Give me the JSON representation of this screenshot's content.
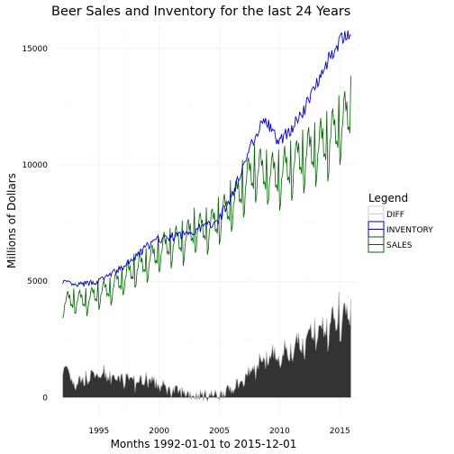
{
  "chart_data": {
    "type": "line",
    "title": "Beer Sales and Inventory for the last 24 Years",
    "xlabel": "Months 1992-01-01 to 2015-12-01",
    "ylabel": "Millions of Dollars",
    "x_start": "1992-01",
    "x_end": "2015-12",
    "xlim": [
      1991.5,
      2016.4
    ],
    "ylim": [
      -800,
      16000
    ],
    "x_ticks": [
      1995,
      2000,
      2005,
      2010,
      2015
    ],
    "y_ticks": [
      0,
      5000,
      10000,
      15000
    ],
    "x_tick_labels": [
      "1995",
      "2000",
      "2005",
      "2010",
      "2015"
    ],
    "y_tick_labels": [
      "0",
      "5000",
      "10000",
      "15000"
    ],
    "grid": true,
    "legend": {
      "title": "Legend",
      "position": "right"
    },
    "series": [
      {
        "name": "DIFF",
        "color": "#333333",
        "style": "area",
        "anchors": [
          [
            1992.0,
            1400
          ],
          [
            1993.0,
            600
          ],
          [
            1994.0,
            800
          ],
          [
            1995.0,
            900
          ],
          [
            1996.0,
            900
          ],
          [
            1997.0,
            800
          ],
          [
            1998.0,
            600
          ],
          [
            1999.0,
            800
          ],
          [
            2000.0,
            500
          ],
          [
            2001.0,
            300
          ],
          [
            2002.0,
            200
          ],
          [
            2003.0,
            100
          ],
          [
            2004.0,
            100
          ],
          [
            2005.0,
            100
          ],
          [
            2006.0,
            400
          ],
          [
            2007.0,
            700
          ],
          [
            2008.0,
            1300
          ],
          [
            2009.0,
            1700
          ],
          [
            2010.0,
            1700
          ],
          [
            2011.0,
            2000
          ],
          [
            2012.0,
            2300
          ],
          [
            2013.0,
            2700
          ],
          [
            2014.0,
            2900
          ],
          [
            2015.0,
            3300
          ],
          [
            2015.92,
            3400
          ]
        ]
      },
      {
        "name": "INVENTORY",
        "color": "#0000cc",
        "style": "line",
        "anchors": [
          [
            1992.0,
            5000
          ],
          [
            1993.0,
            4800
          ],
          [
            1994.0,
            4900
          ],
          [
            1995.0,
            5000
          ],
          [
            1996.0,
            5300
          ],
          [
            1997.0,
            5600
          ],
          [
            1998.0,
            6000
          ],
          [
            1999.0,
            6500
          ],
          [
            2000.0,
            6800
          ],
          [
            2001.0,
            6900
          ],
          [
            2002.0,
            7000
          ],
          [
            2003.0,
            7200
          ],
          [
            2004.0,
            7400
          ],
          [
            2005.0,
            7700
          ],
          [
            2006.0,
            8600
          ],
          [
            2007.0,
            10000
          ],
          [
            2008.0,
            11300
          ],
          [
            2008.75,
            12000
          ],
          [
            2009.5,
            11300
          ],
          [
            2010.0,
            11000
          ],
          [
            2011.0,
            11600
          ],
          [
            2012.0,
            12300
          ],
          [
            2013.0,
            13500
          ],
          [
            2014.0,
            14500
          ],
          [
            2015.0,
            15300
          ],
          [
            2015.92,
            15600
          ]
        ]
      },
      {
        "name": "SALES",
        "color": "#006400",
        "style": "line",
        "anchors": [
          [
            1992.0,
            4000
          ],
          [
            1993.0,
            4100
          ],
          [
            1994.0,
            4100
          ],
          [
            1995.0,
            4400
          ],
          [
            1996.0,
            4600
          ],
          [
            1997.0,
            5000
          ],
          [
            1998.0,
            5400
          ],
          [
            1999.0,
            5700
          ],
          [
            2000.0,
            6100
          ],
          [
            2001.0,
            6500
          ],
          [
            2002.0,
            6600
          ],
          [
            2003.0,
            7100
          ],
          [
            2004.0,
            7100
          ],
          [
            2005.0,
            7500
          ],
          [
            2006.0,
            8100
          ],
          [
            2007.0,
            8900
          ],
          [
            2008.0,
            9600
          ],
          [
            2009.0,
            9400
          ],
          [
            2010.0,
            9300
          ],
          [
            2011.0,
            9800
          ],
          [
            2012.0,
            10200
          ],
          [
            2013.0,
            10400
          ],
          [
            2014.0,
            10800
          ],
          [
            2015.0,
            11400
          ],
          [
            2015.92,
            12000
          ]
        ]
      }
    ]
  }
}
